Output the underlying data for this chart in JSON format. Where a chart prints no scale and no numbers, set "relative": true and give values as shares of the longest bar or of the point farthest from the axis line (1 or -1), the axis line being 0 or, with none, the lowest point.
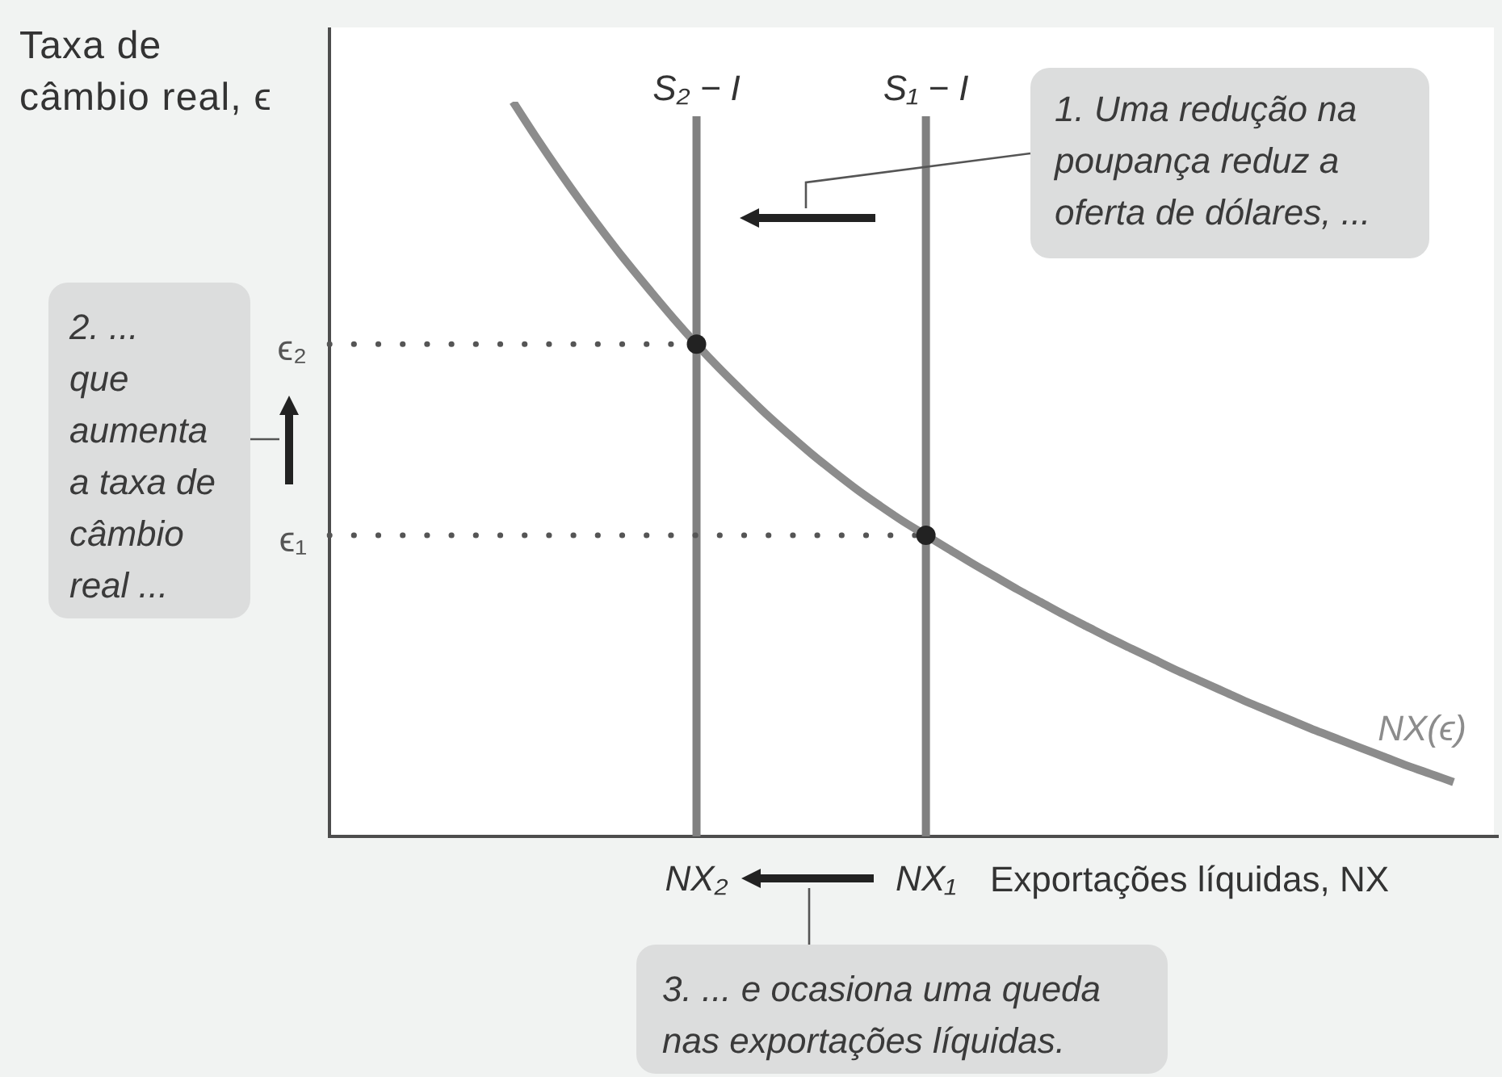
{
  "chart_data": {
    "type": "line",
    "relative": true,
    "ylabel": "Taxa de\ncâmbio real, ϵ",
    "xlabel": "Exportações líquidas, NX",
    "categories": [
      null,
      null,
      null,
      null,
      null,
      null,
      null,
      null,
      null,
      null,
      null,
      null,
      null,
      null,
      null,
      null,
      "NX₂",
      null,
      null,
      null,
      null,
      null,
      null,
      null,
      null,
      null,
      "NX₁",
      null,
      null,
      null,
      null,
      null,
      null,
      null,
      null,
      null,
      null,
      null,
      null,
      null,
      null,
      null,
      null,
      null,
      null,
      null,
      null,
      null,
      null,
      null
    ],
    "marker": "none",
    "series": [
      {
        "name": "NX(ϵ)",
        "type": "line",
        "color": "#8c8c8c",
        "values": [
          null,
          null,
          null,
          null,
          null,
          null,
          null,
          null,
          1,
          0.952,
          0.906,
          0.862,
          0.82,
          0.78,
          0.742,
          0.705,
          0.67,
          0.637,
          0.606,
          0.576,
          0.548,
          0.521,
          0.496,
          0.472,
          0.45,
          0.429,
          0.41,
          0.391,
          0.372,
          0.354,
          0.336,
          0.319,
          0.302,
          0.286,
          0.27,
          0.255,
          0.24,
          0.225,
          0.211,
          0.197,
          0.183,
          0.17,
          0.157,
          0.144,
          0.132,
          0.12,
          0.108,
          0.096,
          0.085,
          0.074
        ]
      },
      {
        "name": "ϵ₂",
        "type": "line",
        "line_style": "dotted",
        "color": "#555555",
        "values": [
          0.67,
          0.67,
          0.67,
          0.67,
          0.67,
          0.67,
          0.67,
          0.67,
          0.67,
          0.67,
          0.67,
          0.67,
          0.67,
          0.67,
          0.67,
          0.67,
          0.67,
          null,
          null,
          null,
          null,
          null,
          null,
          null,
          null,
          null,
          null,
          null,
          null,
          null,
          null,
          null,
          null,
          null,
          null,
          null,
          null,
          null,
          null,
          null,
          null,
          null,
          null,
          null,
          null,
          null,
          null,
          null,
          null,
          null
        ]
      },
      {
        "name": "ϵ₁",
        "type": "line",
        "line_style": "dotted",
        "color": "#555555",
        "values": [
          0.41,
          0.41,
          0.41,
          0.41,
          0.41,
          0.41,
          0.41,
          0.41,
          0.41,
          0.41,
          0.41,
          0.41,
          0.41,
          0.41,
          0.41,
          0.41,
          0.41,
          0.41,
          0.41,
          0.41,
          0.41,
          0.41,
          0.41,
          0.41,
          0.41,
          0.41,
          0.41,
          null,
          null,
          null,
          null,
          null,
          null,
          null,
          null,
          null,
          null,
          null,
          null,
          null,
          null,
          null,
          null,
          null,
          null,
          null,
          null,
          null,
          null,
          null
        ]
      },
      {
        "type": "scatter",
        "marker": "circle",
        "color": "#222222",
        "x": [
          "NX₂",
          "NX₁"
        ],
        "values": [
          0.67,
          0.41
        ]
      }
    ],
    "ref_lines": [
      {
        "axis": "x",
        "value": "NX₂",
        "label": "S₂ − I",
        "color": "#808080"
      },
      {
        "axis": "x",
        "value": "NX₁",
        "label": "S₁ − I",
        "color": "#808080"
      }
    ],
    "annotations": [
      "1. Uma redução na\npoupança reduz a\noferta de dólares, ...",
      "2. ...\nque\naumenta\na taxa de\ncâmbio\nreal ...",
      "3. ... e ocasiona uma queda\nnas exportações líquidas."
    ]
  }
}
